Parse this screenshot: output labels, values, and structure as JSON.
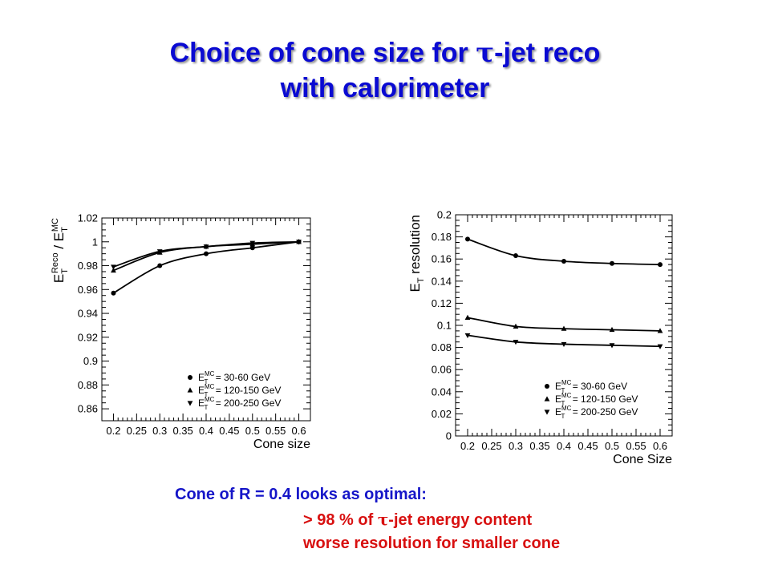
{
  "title": {
    "line1_prefix": "Choice of cone size for ",
    "line1_symbol": "τ",
    "line1_suffix": "-jet reco",
    "line2": "with calorimeter"
  },
  "chart_data": [
    {
      "type": "line",
      "xlabel": "Cone size",
      "ylabel": {
        "main": "E",
        "sub": "T",
        "sup": "Reco",
        "mid": " / E",
        "sub2": "T",
        "sup2": "MC"
      },
      "xlim": [
        0.175,
        0.625
      ],
      "ylim": [
        0.85,
        1.02
      ],
      "xticks": [
        "0.2",
        "0.25",
        "0.3",
        "0.35",
        "0.4",
        "0.45",
        "0.5",
        "0.55",
        "0.6"
      ],
      "yticks": [
        "0.86",
        "0.88",
        "0.9",
        "0.92",
        "0.94",
        "0.96",
        "0.98",
        "1",
        "1.02"
      ],
      "x": [
        0.2,
        0.3,
        0.4,
        0.5,
        0.6
      ],
      "legend_position": "bottom-right",
      "series": [
        {
          "marker": "circle",
          "legend": {
            "e": "E",
            "sub": "T",
            "sup": "MC",
            "text": " = 30-60 GeV"
          },
          "values": [
            0.957,
            0.98,
            0.99,
            0.995,
            1.0
          ]
        },
        {
          "marker": "triangle-up",
          "legend": {
            "e": "E",
            "sub": "T",
            "sup": "MC",
            "text": " = 120-150 GeV"
          },
          "values": [
            0.976,
            0.991,
            0.996,
            0.998,
            1.0
          ]
        },
        {
          "marker": "triangle-down",
          "legend": {
            "e": "E",
            "sub": "T",
            "sup": "MC",
            "text": " = 200-250 GeV"
          },
          "values": [
            0.979,
            0.992,
            0.996,
            0.999,
            1.0
          ]
        }
      ]
    },
    {
      "type": "line",
      "xlabel": "Cone Size",
      "ylabel": {
        "main": "E",
        "sub": "T",
        "rest": " resolution"
      },
      "xlim": [
        0.175,
        0.625
      ],
      "ylim": [
        0,
        0.2
      ],
      "xticks": [
        "0.2",
        "0.25",
        "0.3",
        "0.35",
        "0.4",
        "0.45",
        "0.5",
        "0.55",
        "0.6"
      ],
      "yticks": [
        "0",
        "0.02",
        "0.04",
        "0.06",
        "0.08",
        "0.1",
        "0.12",
        "0.14",
        "0.16",
        "0.18",
        "0.2"
      ],
      "x": [
        0.2,
        0.3,
        0.4,
        0.5,
        0.6
      ],
      "legend_position": "bottom-right",
      "series": [
        {
          "marker": "circle",
          "legend": {
            "e": "E",
            "sub": "T",
            "sup": "MC",
            "text": " = 30-60 GeV"
          },
          "values": [
            0.178,
            0.163,
            0.158,
            0.156,
            0.155
          ]
        },
        {
          "marker": "triangle-up",
          "legend": {
            "e": "E",
            "sub": "T",
            "sup": "MC",
            "text": " = 120-150 GeV"
          },
          "values": [
            0.107,
            0.099,
            0.097,
            0.096,
            0.095
          ]
        },
        {
          "marker": "triangle-down",
          "legend": {
            "e": "E",
            "sub": "T",
            "sup": "MC",
            "text": " = 200-250 GeV"
          },
          "values": [
            0.091,
            0.085,
            0.083,
            0.082,
            0.081
          ]
        }
      ]
    }
  ],
  "caption": {
    "main": "Cone of R = 0.4 looks as optimal:",
    "line1_prefix": "> 98 % of ",
    "line1_symbol": "τ",
    "line1_suffix": "-jet energy content",
    "line2": "worse resolution for smaller cone"
  }
}
